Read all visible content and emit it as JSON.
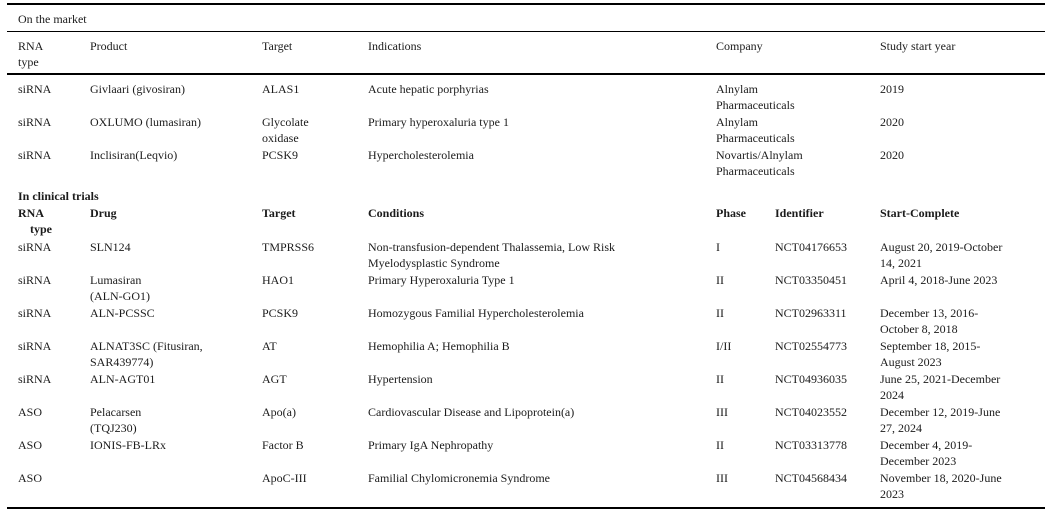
{
  "page": {
    "background_color": "#ffffff",
    "text_color": "#1b1b1b",
    "rule_color": "#000000"
  },
  "table_market": {
    "section_title": "On the market",
    "headers": [
      "RNA\ntype",
      "Product",
      "Target",
      "Indications",
      "Company",
      "Study start year"
    ],
    "rows": [
      [
        "siRNA",
        "Givlaari (givosiran)",
        "ALAS1",
        "Acute hepatic porphyrias",
        "Alnylam\nPharmaceuticals",
        "2019"
      ],
      [
        "siRNA",
        "OXLUMO (lumasiran)",
        "Glycolate\noxidase",
        "Primary hyperoxaluria type 1",
        "Alnylam\nPharmaceuticals",
        "2020"
      ],
      [
        "siRNA",
        "Inclisiran(Leqvio)",
        "PCSK9",
        "Hypercholesterolemia",
        "Novartis/Alnylam\nPharmaceuticals",
        "2020"
      ]
    ]
  },
  "table_trials": {
    "section_title": "In clinical trials",
    "headers": [
      "RNA\n    type",
      "Drug",
      "Target",
      "Conditions",
      "Phase",
      "Identifier",
      "Start-Complete"
    ],
    "rows": [
      [
        "siRNA",
        "SLN124",
        "TMPRSS6",
        "Non-transfusion-dependent Thalassemia, Low Risk\nMyelodysplastic Syndrome",
        "I",
        "NCT04176653",
        "August 20, 2019-October\n14, 2021"
      ],
      [
        "siRNA",
        "Lumasiran\n(ALN-GO1)",
        "HAO1",
        "Primary Hyperoxaluria Type 1",
        "II",
        "NCT03350451",
        "April 4, 2018-June 2023"
      ],
      [
        "siRNA",
        "ALN-PCSSC",
        "PCSK9",
        "Homozygous Familial Hypercholesterolemia",
        "II",
        "NCT02963311",
        "December 13, 2016-\nOctober 8, 2018"
      ],
      [
        "siRNA",
        "ALNAT3SC (Fitusiran,\nSAR439774)",
        "AT",
        "Hemophilia A; Hemophilia B",
        "I/II",
        "NCT02554773",
        "September 18, 2015-\nAugust 2023"
      ],
      [
        "siRNA",
        "ALN-AGT01",
        "AGT",
        "Hypertension",
        "II",
        "NCT04936035",
        "June 25, 2021-December\n2024"
      ],
      [
        "ASO",
        "Pelacarsen\n(TQJ230)",
        "Apo(a)",
        "Cardiovascular Disease and Lipoprotein(a)",
        "III",
        "NCT04023552",
        "December 12, 2019-June\n27, 2024"
      ],
      [
        "ASO",
        "IONIS-FB-LRx",
        "Factor B",
        "Primary IgA Nephropathy",
        "II",
        "NCT03313778",
        "December 4, 2019-\nDecember 2023"
      ],
      [
        "ASO",
        "",
        "ApoC-III",
        "Familial Chylomicronemia Syndrome",
        "III",
        "NCT04568434",
        "November 18, 2020-June\n2023"
      ]
    ]
  }
}
